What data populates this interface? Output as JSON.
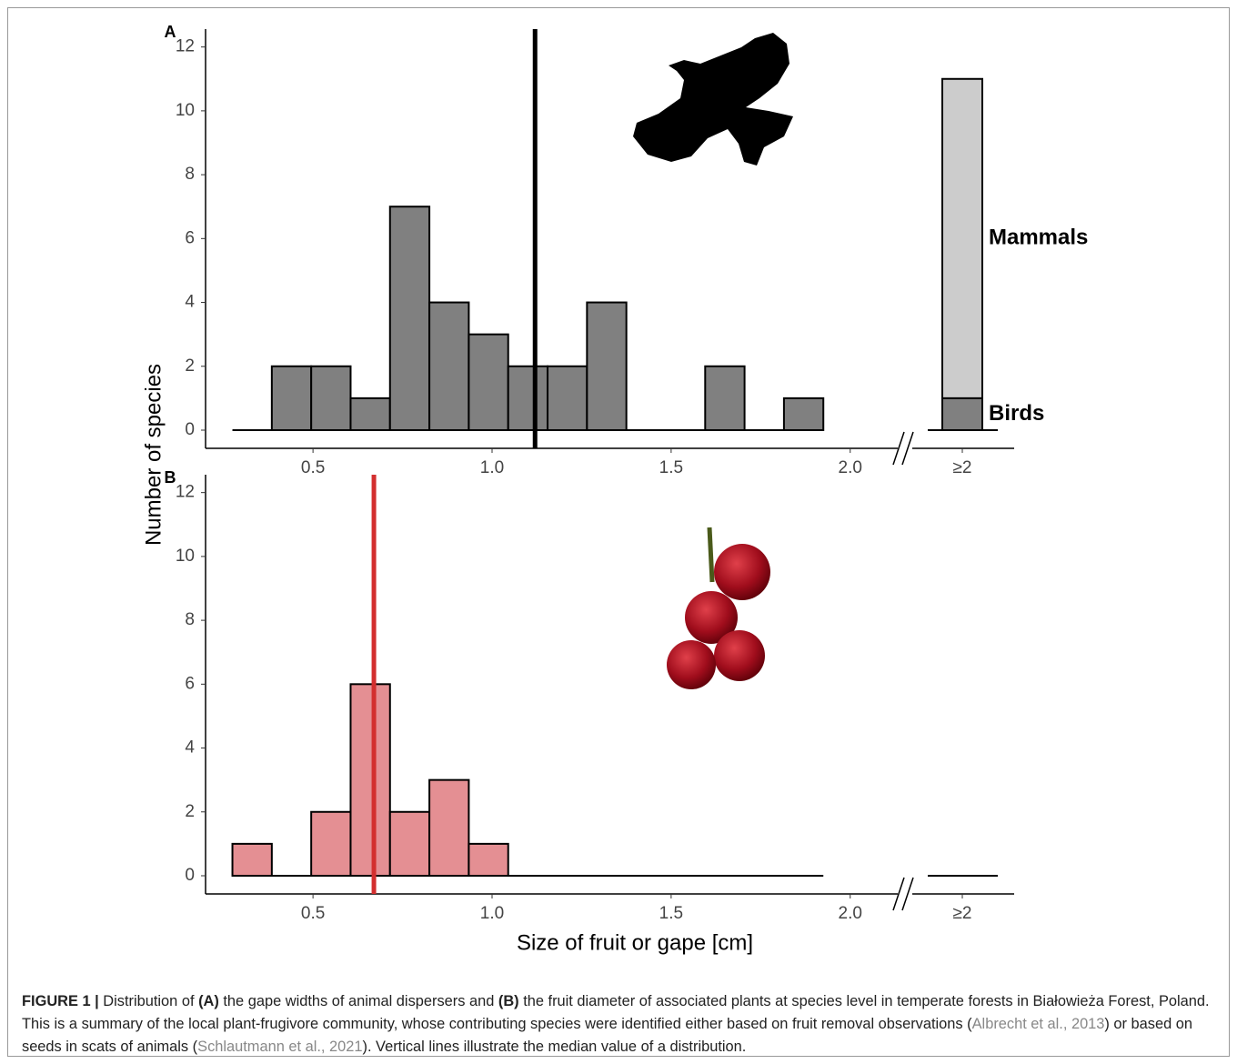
{
  "figure": {
    "y_label": "Number of species",
    "x_label": "Size of fruit or gape [cm]",
    "caption": [
      {
        "text": "FIGURE 1 |",
        "bold": true
      },
      {
        "text": " Distribution of "
      },
      {
        "text": "(A)",
        "bold": true
      },
      {
        "text": " the gape widths of animal dispersers and "
      },
      {
        "text": "(B)",
        "bold": true
      },
      {
        "text": " the fruit diameter of associated plants at species level in temperate forests in Białowieża Forest, Poland. This is a summary of the local plant-frugivore community, whose contributing species were identified either based on fruit removal observations ("
      },
      {
        "text": "Albrecht et al., 2013",
        "link": true
      },
      {
        "text": ") or based on seeds in scats of animals ("
      },
      {
        "text": "Schlautmann et al., 2021",
        "link": true
      },
      {
        "text": "). Vertical lines illustrate the median value of a distribution."
      }
    ]
  },
  "chart_data": [
    {
      "type": "histogram",
      "panel_label": "A",
      "color": "#808080",
      "bins": [
        0.275,
        0.385,
        0.495,
        0.605,
        0.715,
        0.825,
        0.935,
        1.045,
        1.155,
        1.265,
        1.375,
        1.485,
        1.595,
        1.705,
        1.815,
        1.925
      ],
      "counts": [
        0,
        2,
        2,
        1,
        7,
        4,
        3,
        2,
        2,
        4,
        0,
        0,
        2,
        0,
        1
      ],
      "median": 1.12,
      "median_color": "#000000",
      "xlim": [
        0.2,
        2.12
      ],
      "xticks": [
        0.5,
        {
          "value": 1,
          "label": "1.0"
        },
        1.5,
        {
          "value": 2,
          "label": "2.0"
        }
      ],
      "ylim": [
        -0.57,
        12.56
      ],
      "yticks": [
        0,
        2,
        4,
        6,
        8,
        10,
        12
      ],
      "break_bar": {
        "category": "≥2",
        "series": [
          {
            "name": "Birds",
            "color": "#808080",
            "value": 1
          },
          {
            "name": "Mammals",
            "color": "#cccccc",
            "value": 10
          }
        ]
      }
    },
    {
      "type": "histogram",
      "panel_label": "B",
      "color": "#e48f93",
      "bins": [
        0.275,
        0.385,
        0.495,
        0.605,
        0.715,
        0.825,
        0.935,
        1.045,
        1.155,
        1.265,
        1.375,
        1.485,
        1.595,
        1.705,
        1.815,
        1.925
      ],
      "counts": [
        1,
        0,
        2,
        6,
        2,
        3,
        1,
        0,
        0,
        0,
        0,
        0,
        0,
        0,
        0
      ],
      "median": 0.67,
      "median_color": "#d32f2f",
      "xlim": [
        0.2,
        2.12
      ],
      "xticks": [
        0.5,
        {
          "value": 1,
          "label": "1.0"
        },
        1.5,
        {
          "value": 2,
          "label": "2.0"
        }
      ],
      "ylim": [
        -0.57,
        12.56
      ],
      "yticks": [
        0,
        2,
        4,
        6,
        8,
        10,
        12
      ],
      "break_bar": {
        "category": "≥2"
      }
    }
  ]
}
